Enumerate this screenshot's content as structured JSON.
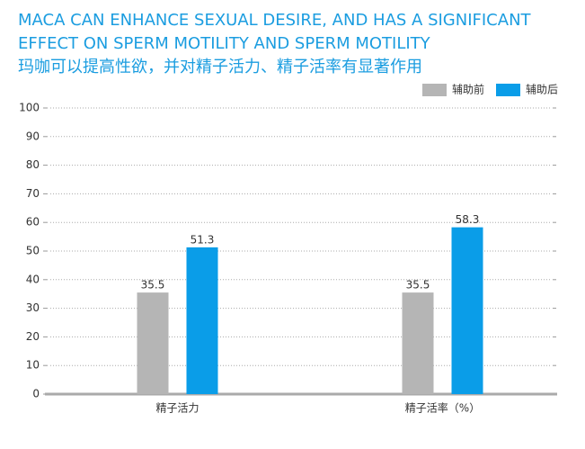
{
  "chart_data": {
    "type": "bar",
    "title": [
      "MACA CAN ENHANCE SEXUAL DESIRE, AND HAS A SIGNIFICANT",
      "EFFECT ON SPERM MOTILITY AND SPERM MOTILITY",
      "玛咖可以提高性欲，并对精子活力、精子活率有显著作用"
    ],
    "categories": [
      "精子活力",
      "精子活率（%）"
    ],
    "series": [
      {
        "name": "辅助前",
        "color": "#b5b5b5",
        "values": [
          35.5,
          35.5
        ]
      },
      {
        "name": "辅助后",
        "color": "#0a9de8",
        "values": [
          51.3,
          58.3
        ]
      }
    ],
    "ylim": [
      0,
      100
    ],
    "yticks": [
      0,
      10,
      20,
      30,
      40,
      50,
      60,
      70,
      80,
      90,
      100
    ],
    "grid": true,
    "legend": "top-right"
  }
}
